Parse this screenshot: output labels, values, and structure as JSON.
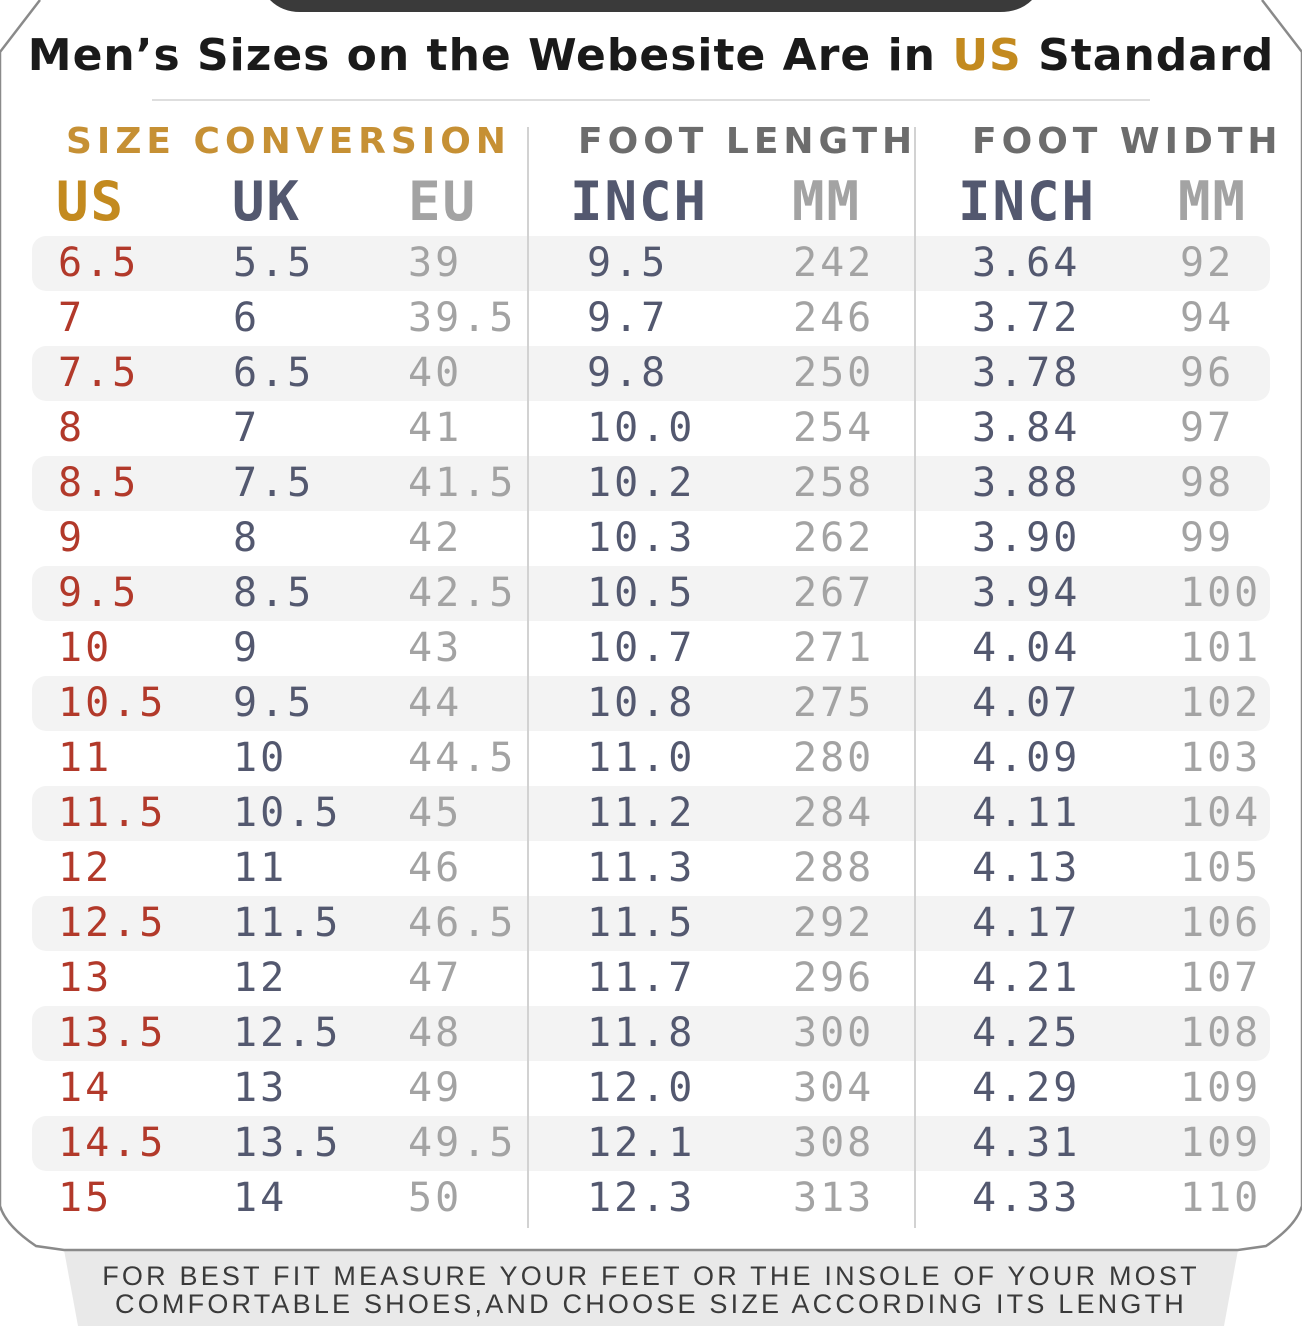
{
  "title": {
    "prefix": "Men’s Sizes on the Webesite Are in ",
    "highlight": "US",
    "suffix": " Standard"
  },
  "sections": {
    "size_conversion": "SIZE CONVERSION",
    "foot_length": "FOOT LENGTH",
    "foot_width": "FOOT WIDTH"
  },
  "columns": {
    "us": "US",
    "uk": "UK",
    "eu": "EU",
    "length_inch": "INCH",
    "length_mm": "MM",
    "width_inch": "INCH",
    "width_mm": "MM"
  },
  "rows": [
    {
      "us": "6.5",
      "uk": "5.5",
      "eu": "39",
      "length_inch": "9.5",
      "length_mm": "242",
      "width_inch": "3.64",
      "width_mm": "92"
    },
    {
      "us": "7",
      "uk": "6",
      "eu": "39.5",
      "length_inch": "9.7",
      "length_mm": "246",
      "width_inch": "3.72",
      "width_mm": "94"
    },
    {
      "us": "7.5",
      "uk": "6.5",
      "eu": "40",
      "length_inch": "9.8",
      "length_mm": "250",
      "width_inch": "3.78",
      "width_mm": "96"
    },
    {
      "us": "8",
      "uk": "7",
      "eu": "41",
      "length_inch": "10.0",
      "length_mm": "254",
      "width_inch": "3.84",
      "width_mm": "97"
    },
    {
      "us": "8.5",
      "uk": "7.5",
      "eu": "41.5",
      "length_inch": "10.2",
      "length_mm": "258",
      "width_inch": "3.88",
      "width_mm": "98"
    },
    {
      "us": "9",
      "uk": "8",
      "eu": "42",
      "length_inch": "10.3",
      "length_mm": "262",
      "width_inch": "3.90",
      "width_mm": "99"
    },
    {
      "us": "9.5",
      "uk": "8.5",
      "eu": "42.5",
      "length_inch": "10.5",
      "length_mm": "267",
      "width_inch": "3.94",
      "width_mm": "100"
    },
    {
      "us": "10",
      "uk": "9",
      "eu": "43",
      "length_inch": "10.7",
      "length_mm": "271",
      "width_inch": "4.04",
      "width_mm": "101"
    },
    {
      "us": "10.5",
      "uk": "9.5",
      "eu": "44",
      "length_inch": "10.8",
      "length_mm": "275",
      "width_inch": "4.07",
      "width_mm": "102"
    },
    {
      "us": "11",
      "uk": "10",
      "eu": "44.5",
      "length_inch": "11.0",
      "length_mm": "280",
      "width_inch": "4.09",
      "width_mm": "103"
    },
    {
      "us": "11.5",
      "uk": "10.5",
      "eu": "45",
      "length_inch": "11.2",
      "length_mm": "284",
      "width_inch": "4.11",
      "width_mm": "104"
    },
    {
      "us": "12",
      "uk": "11",
      "eu": "46",
      "length_inch": "11.3",
      "length_mm": "288",
      "width_inch": "4.13",
      "width_mm": "105"
    },
    {
      "us": "12.5",
      "uk": "11.5",
      "eu": "46.5",
      "length_inch": "11.5",
      "length_mm": "292",
      "width_inch": "4.17",
      "width_mm": "106"
    },
    {
      "us": "13",
      "uk": "12",
      "eu": "47",
      "length_inch": "11.7",
      "length_mm": "296",
      "width_inch": "4.21",
      "width_mm": "107"
    },
    {
      "us": "13.5",
      "uk": "12.5",
      "eu": "48",
      "length_inch": "11.8",
      "length_mm": "300",
      "width_inch": "4.25",
      "width_mm": "108"
    },
    {
      "us": "14",
      "uk": "13",
      "eu": "49",
      "length_inch": "12.0",
      "length_mm": "304",
      "width_inch": "4.29",
      "width_mm": "109"
    },
    {
      "us": "14.5",
      "uk": "13.5",
      "eu": "49.5",
      "length_inch": "12.1",
      "length_mm": "308",
      "width_inch": "4.31",
      "width_mm": "109"
    },
    {
      "us": "15",
      "uk": "14",
      "eu": "50",
      "length_inch": "12.3",
      "length_mm": "313",
      "width_inch": "4.33",
      "width_mm": "110"
    }
  ],
  "footer": {
    "line1": "FOR BEST FIT MEASURE YOUR FEET OR THE INSOLE OF YOUR MOST",
    "line2": "COMFORTABLE SHOES,AND CHOOSE SIZE ACCORDING ITS LENGTH"
  },
  "colors": {
    "accent_gold": "#c38a1f",
    "us_red": "#b2392a",
    "slate": "#53586f",
    "light_gray": "#a3a3a3"
  }
}
